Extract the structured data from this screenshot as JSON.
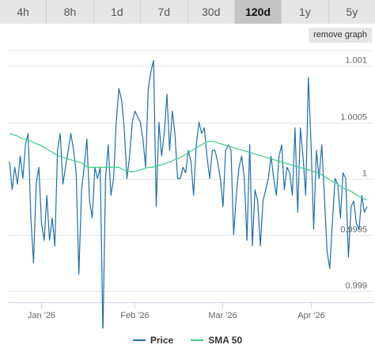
{
  "tabs": [
    "4h",
    "8h",
    "1d",
    "7d",
    "30d",
    "120d",
    "1y",
    "5y"
  ],
  "active_tab": "120d",
  "remove_graph_label": "remove graph",
  "colors": {
    "price": "#1f6fa8",
    "sma": "#3ecf86",
    "grid": "#e6e6e6",
    "axis": "#ccd6eb",
    "label": "#666666"
  },
  "chart_data": {
    "type": "line",
    "x_tick_labels": [
      "Jan '26",
      "Feb '26",
      "Mar '26",
      "Apr '26"
    ],
    "y_tick_labels": [
      "1.001",
      "1.0005",
      "1",
      "0.9995",
      "0.999"
    ],
    "y_ticks": [
      1.001,
      1.0005,
      1.0,
      0.9995,
      0.999
    ],
    "ylim": [
      0.9989,
      1.0012
    ],
    "grid": true,
    "legend_position": "bottom",
    "series": [
      {
        "name": "Price",
        "values": [
          1.00015,
          0.9999,
          1.0001,
          0.99995,
          1.0002,
          1.0,
          1.0003,
          1.0004,
          0.99965,
          0.99925,
          0.99995,
          1.0001,
          0.9996,
          0.99945,
          0.99985,
          0.99945,
          0.99965,
          0.9994,
          1.00025,
          1.0004,
          0.99995,
          1.0001,
          1.00025,
          1.0004,
          1.00025,
          1.00005,
          0.99915,
          0.9999,
          1.0001,
          1.00035,
          0.9998,
          0.99965,
          1.0001,
          1.0,
          1.0001,
          0.9986,
          1.0,
          1.0003,
          0.99985,
          1.0,
          1.0005,
          1.0008,
          1.0007,
          1.00045,
          1.0,
          1.0002,
          1.0005,
          1.0006,
          1.00055,
          1.0005,
          1.00035,
          1.0001,
          1.0008,
          1.00095,
          1.00105,
          0.99975,
          1.0005,
          1.0002,
          1.0004,
          1.00075,
          1.00025,
          1.0006,
          1.0004,
          1.0,
          1.0,
          1.0001,
          1.00005,
          1.00025,
          1.00015,
          0.99985,
          1.0003,
          1.0005,
          1.0004,
          1.00045,
          1.0002,
          1.0,
          1.00025,
          1.00025,
          1.00015,
          1.0,
          0.99975,
          1.00025,
          1.0003,
          1.00025,
          0.9995,
          0.99985,
          1.0001,
          1.0002,
          1.0,
          0.99945,
          1.0003,
          0.9994,
          0.9999,
          0.9998,
          0.9994,
          0.9998,
          0.9999,
          1.0,
          1.0002,
          1.0,
          0.99985,
          1.0002,
          1.0003,
          0.9999,
          1.0001,
          1.00005,
          0.99985,
          1.00045,
          0.9997,
          1.00045,
          1.0002,
          0.99985,
          1.0009,
          1.0003,
          0.99955,
          1.00025,
          1.0,
          1.0003,
          0.99985,
          0.99935,
          0.9992,
          0.9996,
          1.0,
          0.99995,
          0.99965,
          1.00005,
          1.0,
          0.9993,
          0.99975,
          0.9998,
          0.9996,
          0.99955,
          0.99985,
          0.9997,
          0.99975
        ],
        "color": "#1f6fa8"
      },
      {
        "name": "SMA 50",
        "values": [
          1.0004,
          1.00039,
          1.00038,
          1.00036,
          1.00035,
          1.00034,
          1.00033,
          1.00031,
          1.0003,
          1.00028,
          1.00026,
          1.00024,
          1.00022,
          1.0002,
          1.00019,
          1.00018,
          1.00017,
          1.00016,
          1.00015,
          1.00014,
          1.00012,
          1.0001,
          1.0001,
          1.0001,
          1.0001,
          1.0001,
          1.0001,
          1.0001,
          1.0001,
          1.0001,
          1.00008,
          1.00007,
          1.00006,
          1.00006,
          1.00007,
          1.00008,
          1.00009,
          1.0001,
          1.0001,
          1.00011,
          1.00012,
          1.00013,
          1.00014,
          1.00015,
          1.00017,
          1.00018,
          1.0002,
          1.00022,
          1.00024,
          1.00026,
          1.00028,
          1.0003,
          1.00032,
          1.00033,
          1.00033,
          1.00032,
          1.00031,
          1.0003,
          1.00029,
          1.00028,
          1.00027,
          1.00026,
          1.00025,
          1.00024,
          1.00023,
          1.00022,
          1.00021,
          1.0002,
          1.00019,
          1.00018,
          1.00017,
          1.00016,
          1.00015,
          1.00014,
          1.00013,
          1.00012,
          1.00011,
          1.0001,
          1.00009,
          1.00008,
          1.00007,
          1.00006,
          1.00005,
          1.00003,
          1.00001,
          0.99999,
          0.99997,
          0.99995,
          0.99993,
          0.99991,
          0.9999,
          0.99988,
          0.99986,
          0.99984,
          0.99982,
          0.99981
        ],
        "color": "#3ecf86"
      }
    ]
  },
  "legend": {
    "price_label": "Price",
    "sma_label": "SMA 50"
  }
}
